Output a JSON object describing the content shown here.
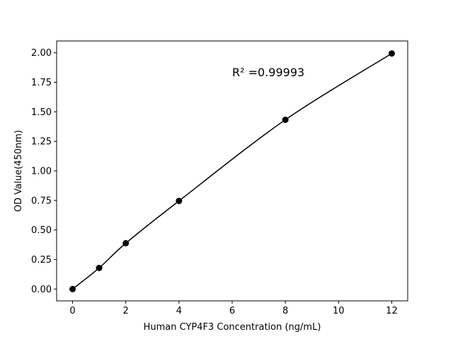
{
  "chart_data": {
    "type": "line",
    "title": "",
    "xlabel": "Human CYP4F3 Concentration (ng/mL)",
    "ylabel": "OD Value(450nm)",
    "xlim": [
      -0.6,
      12.6
    ],
    "ylim": [
      -0.1,
      2.1
    ],
    "xticks": [
      0,
      2,
      4,
      6,
      8,
      10,
      12
    ],
    "xtick_labels": [
      "0",
      "2",
      "4",
      "6",
      "8",
      "10",
      "12"
    ],
    "yticks": [
      0,
      0.25,
      0.5,
      0.75,
      1.0,
      1.25,
      1.5,
      1.75,
      2.0
    ],
    "ytick_labels": [
      "0.00",
      "0.25",
      "0.50",
      "0.75",
      "1.00",
      "1.25",
      "1.50",
      "1.75",
      "2.00"
    ],
    "grid": false,
    "series": [
      {
        "x": [
          0,
          1,
          2,
          4,
          8,
          12
        ],
        "y": [
          0.0,
          0.179,
          0.388,
          0.746,
          1.433,
          1.994
        ],
        "color": "#000000",
        "marker": "circle",
        "fit_curve": "smooth"
      }
    ],
    "annotations": [
      {
        "text": "R² =0.99993",
        "x": 6.0,
        "y": 1.8
      }
    ]
  }
}
